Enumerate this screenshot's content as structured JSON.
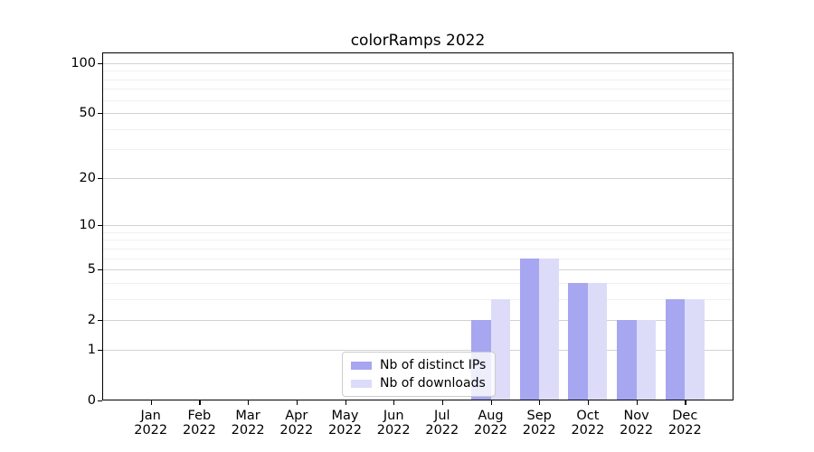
{
  "chart_data": {
    "type": "bar",
    "title": "colorRamps 2022",
    "categories": [
      "Jan 2022",
      "Feb 2022",
      "Mar 2022",
      "Apr 2022",
      "May 2022",
      "Jun 2022",
      "Jul 2022",
      "Aug 2022",
      "Sep 2022",
      "Oct 2022",
      "Nov 2022",
      "Dec 2022"
    ],
    "series": [
      {
        "name": "Nb of distinct IPs",
        "color": "#a6a6f1",
        "values": [
          0,
          0,
          0,
          0,
          0,
          0,
          0,
          2,
          6,
          4,
          2,
          3
        ]
      },
      {
        "name": "Nb of downloads",
        "color": "#dcdcf8",
        "values": [
          0,
          0,
          0,
          0,
          0,
          0,
          0,
          3,
          6,
          4,
          2,
          3
        ]
      }
    ],
    "xlabel": "",
    "ylabel": "",
    "yscale": "log1p",
    "ylim": [
      0,
      116
    ],
    "yticks_major": [
      0,
      1,
      2,
      5,
      10,
      20,
      50,
      100
    ],
    "yticks_minor": [
      3,
      4,
      6,
      7,
      8,
      9,
      30,
      40,
      60,
      70,
      80,
      90
    ],
    "grid": "horizontal",
    "grid_major_color": "#d2d2d2",
    "grid_minor_color": "#f0f0f0",
    "axis_color": "#000000",
    "legend_position": "lower center inside"
  }
}
